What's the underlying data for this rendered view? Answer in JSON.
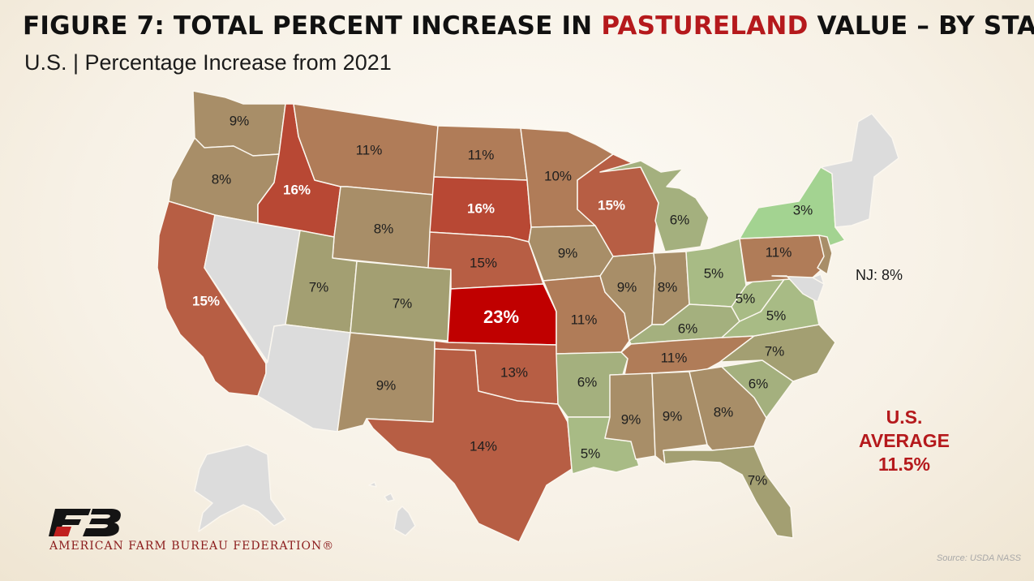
{
  "title": {
    "prefix": "FIGURE 7: TOTAL PERCENT INCREASE IN ",
    "highlight": "PASTURELAND",
    "suffix": " VALUE – BY STATE"
  },
  "subtitle": "U.S. | Percentage Increase from 2021",
  "colors": {
    "no_data": "#dcdcdc",
    "dark_red": "#c00000",
    "red": "#b84834",
    "rust": "#b75e44",
    "brown": "#b07c58",
    "tan": "#a88e68",
    "olive": "#a39f72",
    "green_olive": "#a4b07e",
    "sage": "#a8bb85",
    "light_green": "#a3d391",
    "text_highlight": "#b5191c"
  },
  "states": [
    {
      "code": "WA",
      "label": "9%",
      "value": 9,
      "color_key": "tan"
    },
    {
      "code": "OR",
      "label": "8%",
      "value": 8,
      "color_key": "tan"
    },
    {
      "code": "CA",
      "label": "15%",
      "value": 15,
      "color_key": "rust"
    },
    {
      "code": "NV",
      "label": "",
      "value": null,
      "color_key": "no_data"
    },
    {
      "code": "ID",
      "label": "16%",
      "value": 16,
      "color_key": "red"
    },
    {
      "code": "MT",
      "label": "11%",
      "value": 11,
      "color_key": "brown"
    },
    {
      "code": "WY",
      "label": "8%",
      "value": 8,
      "color_key": "tan"
    },
    {
      "code": "UT",
      "label": "7%",
      "value": 7,
      "color_key": "olive"
    },
    {
      "code": "AZ",
      "label": "",
      "value": null,
      "color_key": "no_data"
    },
    {
      "code": "CO",
      "label": "7%",
      "value": 7,
      "color_key": "olive"
    },
    {
      "code": "NM",
      "label": "9%",
      "value": 9,
      "color_key": "tan"
    },
    {
      "code": "ND",
      "label": "11%",
      "value": 11,
      "color_key": "brown"
    },
    {
      "code": "SD",
      "label": "16%",
      "value": 16,
      "color_key": "red"
    },
    {
      "code": "NE",
      "label": "15%",
      "value": 15,
      "color_key": "rust"
    },
    {
      "code": "KS",
      "label": "23%",
      "value": 23,
      "color_key": "dark_red"
    },
    {
      "code": "OK",
      "label": "13%",
      "value": 13,
      "color_key": "rust"
    },
    {
      "code": "TX",
      "label": "14%",
      "value": 14,
      "color_key": "rust"
    },
    {
      "code": "MN",
      "label": "10%",
      "value": 10,
      "color_key": "brown"
    },
    {
      "code": "IA",
      "label": "9%",
      "value": 9,
      "color_key": "tan"
    },
    {
      "code": "MO",
      "label": "11%",
      "value": 11,
      "color_key": "brown"
    },
    {
      "code": "AR",
      "label": "6%",
      "value": 6,
      "color_key": "green_olive"
    },
    {
      "code": "LA",
      "label": "5%",
      "value": 5,
      "color_key": "sage"
    },
    {
      "code": "WI",
      "label": "15%",
      "value": 15,
      "color_key": "rust"
    },
    {
      "code": "IL",
      "label": "9%",
      "value": 9,
      "color_key": "tan"
    },
    {
      "code": "MS",
      "label": "9%",
      "value": 9,
      "color_key": "tan"
    },
    {
      "code": "MI",
      "label": "6%",
      "value": 6,
      "color_key": "green_olive"
    },
    {
      "code": "IN",
      "label": "8%",
      "value": 8,
      "color_key": "tan"
    },
    {
      "code": "OH",
      "label": "5%",
      "value": 5,
      "color_key": "sage"
    },
    {
      "code": "KY",
      "label": "6%",
      "value": 6,
      "color_key": "green_olive"
    },
    {
      "code": "TN",
      "label": "11%",
      "value": 11,
      "color_key": "brown"
    },
    {
      "code": "AL",
      "label": "9%",
      "value": 9,
      "color_key": "tan"
    },
    {
      "code": "GA",
      "label": "8%",
      "value": 8,
      "color_key": "tan"
    },
    {
      "code": "FL",
      "label": "7%",
      "value": 7,
      "color_key": "olive"
    },
    {
      "code": "SC",
      "label": "6%",
      "value": 6,
      "color_key": "green_olive"
    },
    {
      "code": "NC",
      "label": "7%",
      "value": 7,
      "color_key": "olive"
    },
    {
      "code": "VA",
      "label": "5%",
      "value": 5,
      "color_key": "sage"
    },
    {
      "code": "WV",
      "label": "5%",
      "value": 5,
      "color_key": "sage"
    },
    {
      "code": "PA",
      "label": "11%",
      "value": 11,
      "color_key": "brown"
    },
    {
      "code": "NY",
      "label": "3%",
      "value": 3,
      "color_key": "light_green"
    },
    {
      "code": "NJ",
      "label": "",
      "value": 8,
      "color_key": "tan"
    },
    {
      "code": "MD",
      "label": "",
      "value": null,
      "color_key": "no_data"
    },
    {
      "code": "DE",
      "label": "",
      "value": null,
      "color_key": "no_data"
    },
    {
      "code": "New England",
      "label": "",
      "value": null,
      "color_key": "no_data"
    },
    {
      "code": "AK",
      "label": "",
      "value": null,
      "color_key": "no_data"
    },
    {
      "code": "HI",
      "label": "",
      "value": null,
      "color_key": "no_data"
    }
  ],
  "nj_note": "NJ: 8%",
  "us_average": {
    "line1": "U.S.",
    "line2": "AVERAGE",
    "value": "11.5%"
  },
  "org_name": "AMERICAN FARM BUREAU FEDERATION®",
  "source": "Source: USDA NASS"
}
